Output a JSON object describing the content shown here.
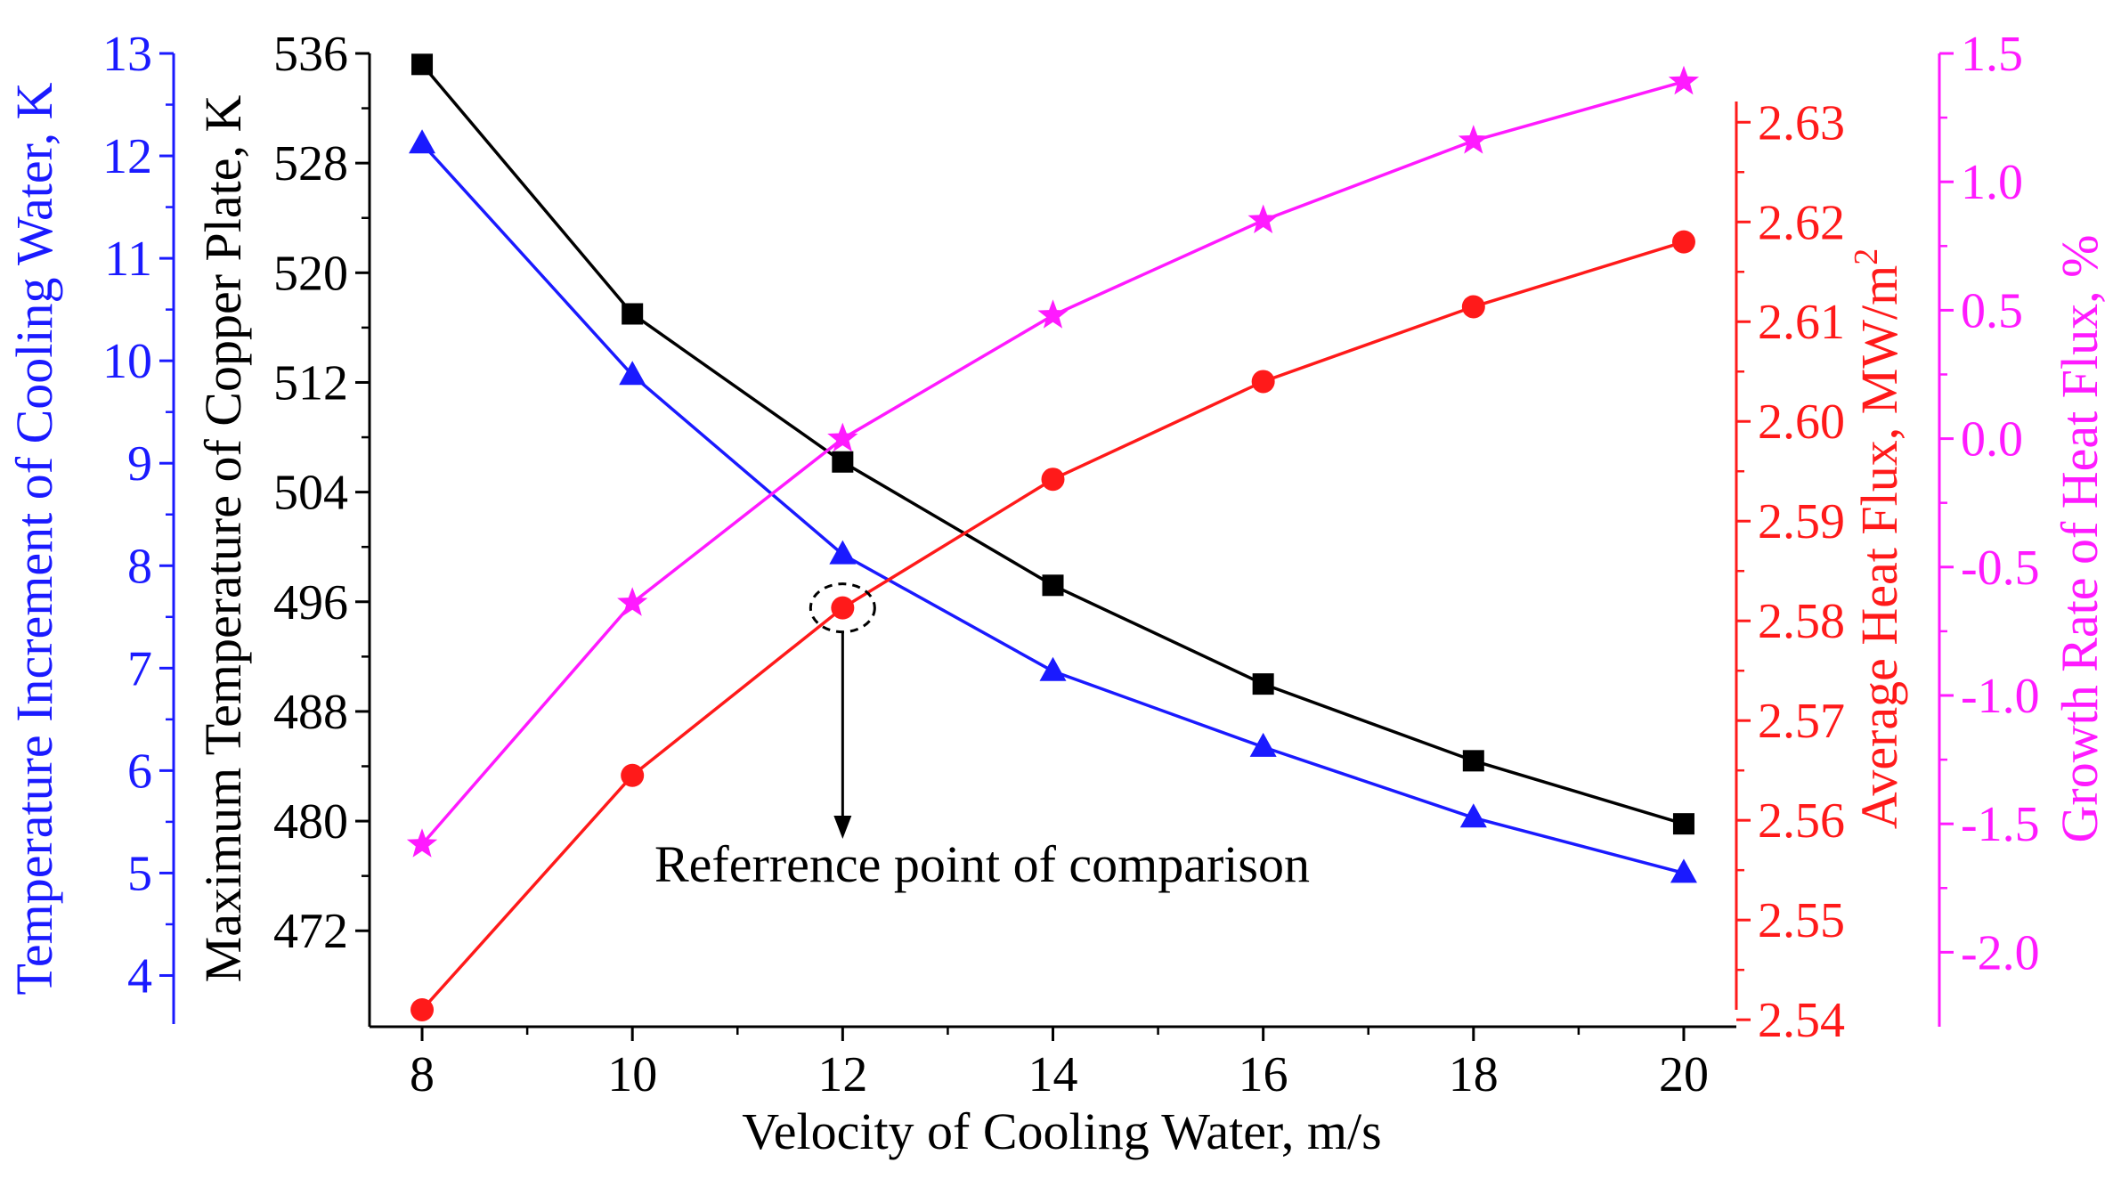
{
  "chart_data": {
    "type": "line",
    "x": [
      8,
      10,
      12,
      14,
      16,
      18,
      20
    ],
    "x_tick_labels": [
      "8",
      "10",
      "12",
      "14",
      "16",
      "18",
      "20"
    ],
    "xlabel": "Velocity of Cooling Water, m/s",
    "xlim": [
      7.5,
      20.5
    ],
    "axes": [
      {
        "id": "blue",
        "color": "#1a1aff",
        "label": "Temperature Increment of Cooling Water, K",
        "ylim": [
          3.5,
          13
        ],
        "ticks": [
          4,
          5,
          6,
          7,
          8,
          9,
          10,
          11,
          12,
          13
        ],
        "tick_labels": [
          "4",
          "5",
          "6",
          "7",
          "8",
          "9",
          "10",
          "11",
          "12",
          "13"
        ]
      },
      {
        "id": "black",
        "color": "#000000",
        "label": "Maximum Temperature of Copper Plate, K",
        "ylim": [
          465,
          536
        ],
        "ticks": [
          472,
          480,
          488,
          496,
          504,
          512,
          520,
          528,
          536
        ],
        "tick_labels": [
          "472",
          "480",
          "488",
          "496",
          "504",
          "512",
          "520",
          "528",
          "536"
        ]
      },
      {
        "id": "red",
        "color": "#ff1a1a",
        "label_main": "Average Heat Flux, MW/m",
        "label_sup": "2",
        "ylim": [
          2.5393,
          2.6369
        ],
        "ticks": [
          2.54,
          2.55,
          2.56,
          2.57,
          2.58,
          2.59,
          2.6,
          2.61,
          2.62,
          2.63
        ],
        "tick_labels": [
          "2.54",
          "2.55",
          "2.56",
          "2.57",
          "2.58",
          "2.59",
          "2.60",
          "2.61",
          "2.62",
          "2.63"
        ]
      },
      {
        "id": "magenta",
        "color": "#ff1aff",
        "label": "Growth Rate of Heat Flux, %",
        "ylim": [
          -2.29,
          1.5
        ],
        "ticks": [
          -2.0,
          -1.5,
          -1.0,
          -0.5,
          0.0,
          0.5,
          1.0,
          1.5
        ],
        "tick_labels": [
          "-2.0",
          "-1.5",
          "-1.0",
          "-0.5",
          "0.0",
          "0.5",
          "1.0",
          "1.5"
        ]
      }
    ],
    "series": [
      {
        "name": "Maximum Temperature of Copper Plate",
        "axis": "black",
        "marker": "square",
        "color": "#000000",
        "values": [
          535.2,
          517.0,
          506.2,
          497.2,
          490.0,
          484.4,
          479.8
        ]
      },
      {
        "name": "Temperature Increment of Cooling Water",
        "axis": "blue",
        "marker": "triangle",
        "color": "#1a1aff",
        "values": [
          12.12,
          9.86,
          8.11,
          6.97,
          6.23,
          5.54,
          5.0
        ]
      },
      {
        "name": "Average Heat Flux",
        "axis": "red",
        "marker": "circle",
        "color": "#ff1a1a",
        "values": [
          2.541,
          2.5645,
          2.5813,
          2.5942,
          2.604,
          2.6115,
          2.618
        ]
      },
      {
        "name": "Growth Rate of Heat Flux",
        "axis": "magenta",
        "marker": "star",
        "color": "#ff1aff",
        "values": [
          -1.58,
          -0.64,
          0.0,
          0.48,
          0.85,
          1.16,
          1.39
        ]
      }
    ],
    "annotation": {
      "text": "Referrence point of comparison",
      "x": 12,
      "series": "Average Heat Flux"
    }
  }
}
